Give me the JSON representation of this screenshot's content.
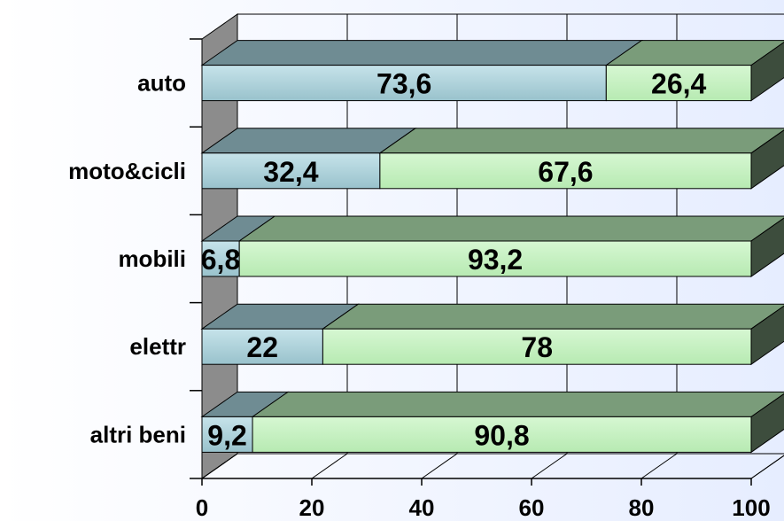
{
  "chart_data": {
    "type": "bar",
    "orientation": "horizontal",
    "stacked": true,
    "percent": true,
    "style": "3d",
    "categories": [
      "auto",
      "moto&cicli",
      "mobili",
      "elettr",
      "altri beni"
    ],
    "series": [
      {
        "values": [
          73.6,
          32.4,
          6.8,
          22,
          9.2
        ],
        "data_labels": [
          "73,6",
          "32,4",
          "6,8",
          "22",
          "9,2"
        ],
        "color": "#a9d4dc"
      },
      {
        "values": [
          26.4,
          67.6,
          93.2,
          78,
          90.8
        ],
        "data_labels": [
          "26,4",
          "67,6",
          "93,2",
          "78",
          "90,8"
        ],
        "color": "#c8f2c4"
      }
    ],
    "xlim": [
      0,
      100
    ],
    "xticks": [
      "0",
      "20",
      "40",
      "60",
      "80",
      "100"
    ],
    "grid": true,
    "legend": "none"
  }
}
